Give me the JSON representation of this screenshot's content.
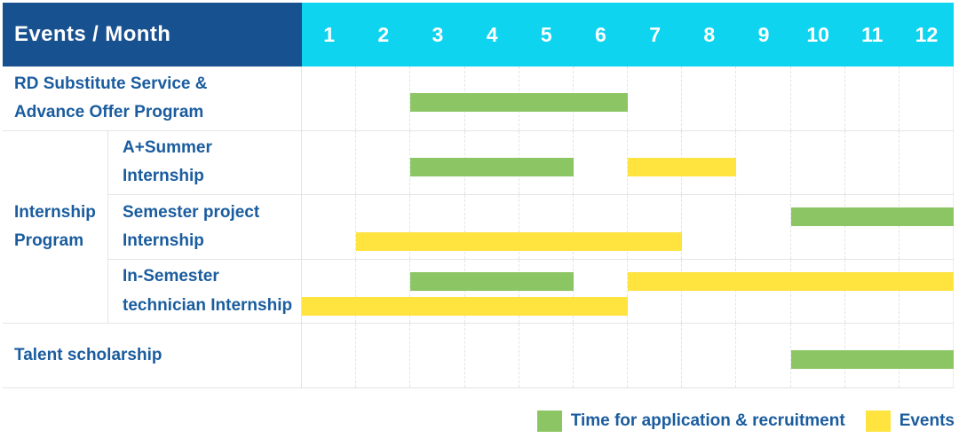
{
  "chart_data": {
    "type": "gantt",
    "title": "Events / Month",
    "x_axis": {
      "unit": "month",
      "ticks": [
        "1",
        "2",
        "3",
        "4",
        "5",
        "6",
        "7",
        "8",
        "9",
        "10",
        "11",
        "12"
      ],
      "range": [
        1,
        12
      ]
    },
    "legend": [
      {
        "key": "recruitment",
        "label": "Time for application & recruitment",
        "color": "#8cc563"
      },
      {
        "key": "events",
        "label": "Events",
        "color": "#ffe33e"
      }
    ],
    "tasks": [
      {
        "group": "",
        "name": "RD Substitute Service &\nAdvance Offer Program",
        "bars": [
          {
            "series": "recruitment",
            "start_month": 3,
            "end_month": 6,
            "lane": "single"
          }
        ]
      },
      {
        "group": "Internship\nProgram",
        "name": "A+Summer\nInternship",
        "bars": [
          {
            "series": "recruitment",
            "start_month": 3,
            "end_month": 5,
            "lane": "single"
          },
          {
            "series": "events",
            "start_month": 7,
            "end_month": 8,
            "lane": "single"
          }
        ]
      },
      {
        "group": "Internship\nProgram",
        "name": "Semester project\nInternship",
        "bars": [
          {
            "series": "recruitment",
            "start_month": 10,
            "end_month": 12,
            "lane": "top"
          },
          {
            "series": "events",
            "start_month": 2,
            "end_month": 7,
            "lane": "bottom"
          }
        ]
      },
      {
        "group": "Internship\nProgram",
        "name": "In-Semester\ntechnician Internship",
        "bars": [
          {
            "series": "recruitment",
            "start_month": 3,
            "end_month": 5,
            "lane": "top"
          },
          {
            "series": "events",
            "start_month": 7,
            "end_month": 12,
            "lane": "top"
          },
          {
            "series": "events",
            "start_month": 1,
            "end_month": 6,
            "lane": "bottom"
          }
        ]
      },
      {
        "group": "",
        "name": "Talent scholarship",
        "bars": [
          {
            "series": "recruitment",
            "start_month": 10,
            "end_month": 12,
            "lane": "single"
          }
        ]
      }
    ]
  },
  "colors": {
    "header_bg": "#18518f",
    "header_text": "#ffffff",
    "months_bg": "#0fd4ef",
    "months_text": "#ffffff",
    "label_text": "#1a5c9e",
    "grid_line": "#e4e4e4",
    "recruitment_green": "#8cc563",
    "events_yellow": "#ffe33e"
  }
}
